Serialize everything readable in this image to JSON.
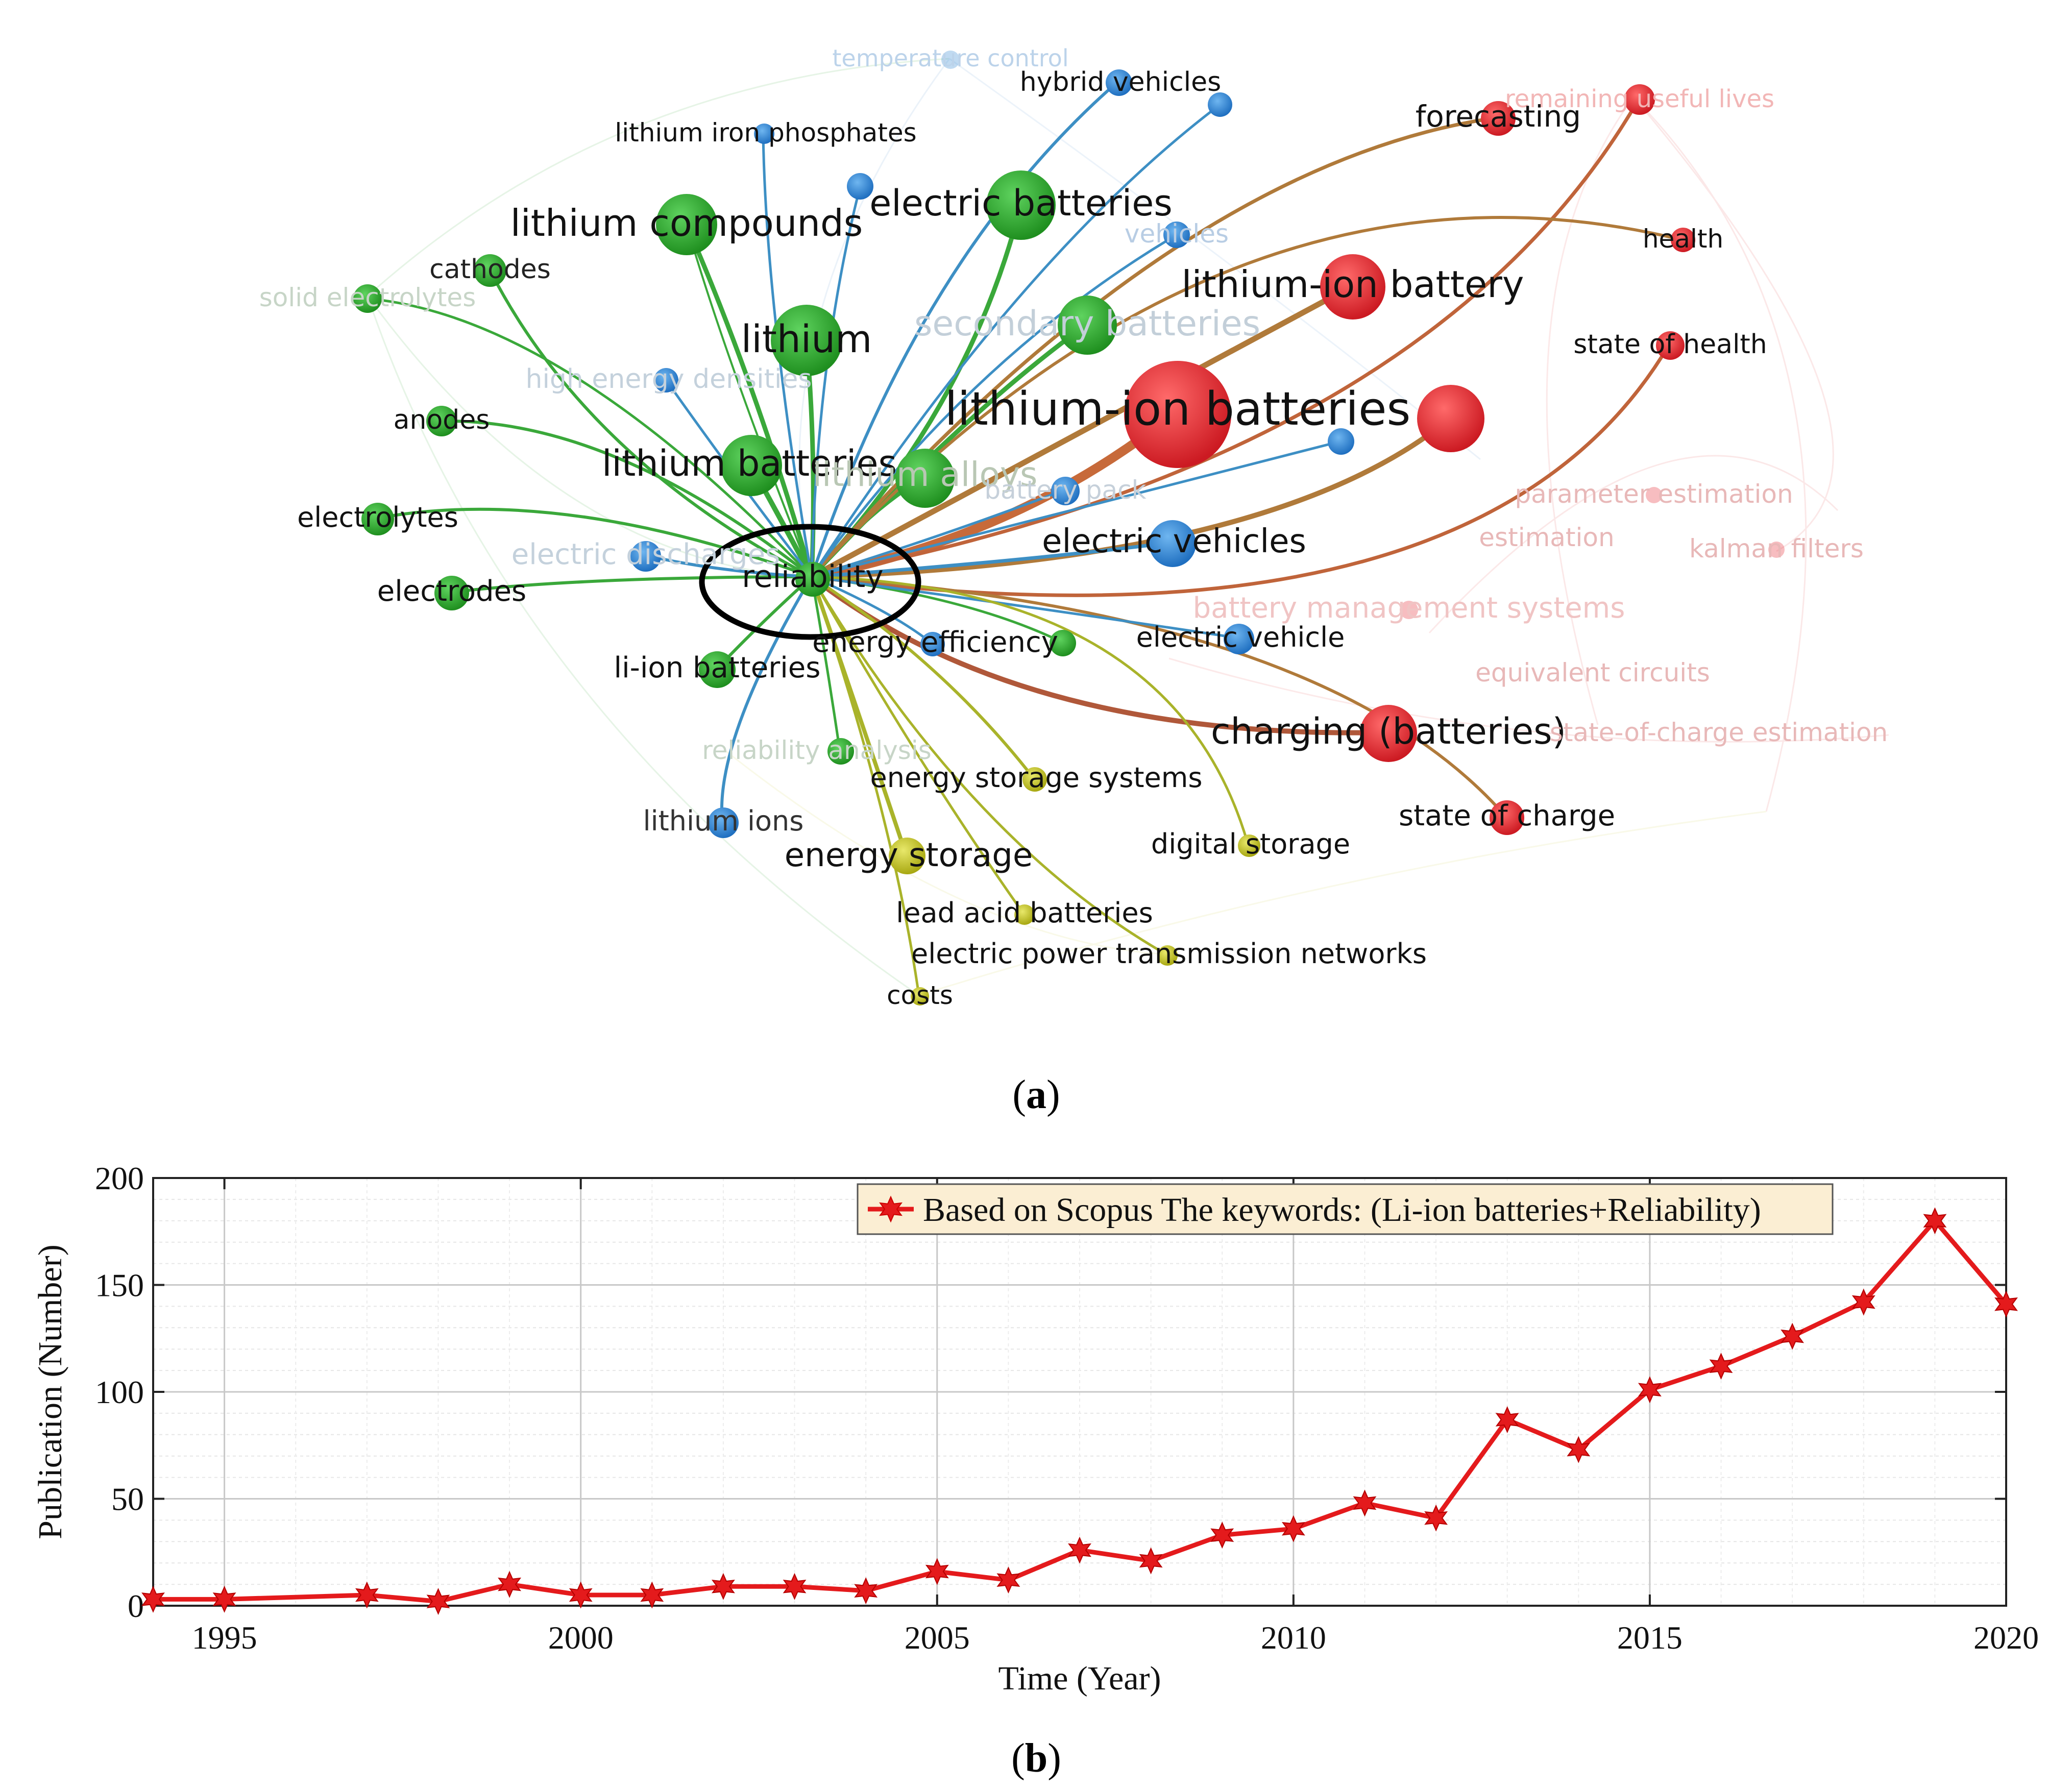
{
  "panels": {
    "a_label": "a",
    "b_label": "b"
  },
  "network": {
    "type": "keyword-cooccurrence-network",
    "highlighted_node": "reliability",
    "cluster_colors": {
      "green": "#2ca02c",
      "red": "#e3262d",
      "blue": "#2f86d1",
      "yellow": "#c8c81c"
    },
    "nodes": [
      {
        "id": "temperature control",
        "cluster": "blue",
        "faded": true
      },
      {
        "id": "hybrid vehicles",
        "cluster": "blue",
        "faded": false
      },
      {
        "id": "remaining useful lives",
        "cluster": "red",
        "faded": true
      },
      {
        "id": "forecasting",
        "cluster": "red",
        "faded": false
      },
      {
        "id": "lithium iron phosphates",
        "cluster": "blue",
        "faded": false
      },
      {
        "id": "lithium compounds",
        "cluster": "green",
        "faded": false
      },
      {
        "id": "electric batteries",
        "cluster": "green",
        "faded": false
      },
      {
        "id": "vehicles",
        "cluster": "blue",
        "faded": true
      },
      {
        "id": "health",
        "cluster": "red",
        "faded": false
      },
      {
        "id": "cathodes",
        "cluster": "green",
        "faded": false
      },
      {
        "id": "solid electrolytes",
        "cluster": "green",
        "faded": true
      },
      {
        "id": "lithium-ion battery",
        "cluster": "red",
        "faded": false
      },
      {
        "id": "lithium",
        "cluster": "green",
        "faded": false
      },
      {
        "id": "secondary batteries",
        "cluster": "green",
        "faded": true
      },
      {
        "id": "state of health",
        "cluster": "red",
        "faded": false
      },
      {
        "id": "high energy densities",
        "cluster": "blue",
        "faded": true
      },
      {
        "id": "anodes",
        "cluster": "green",
        "faded": false
      },
      {
        "id": "lithium-ion batteries",
        "cluster": "red",
        "faded": false
      },
      {
        "id": "lithium batteries",
        "cluster": "green",
        "faded": false
      },
      {
        "id": "lithium alloys",
        "cluster": "green",
        "faded": true
      },
      {
        "id": "battery pack",
        "cluster": "blue",
        "faded": true
      },
      {
        "id": "parameter estimation",
        "cluster": "red",
        "faded": true
      },
      {
        "id": "electrolytes",
        "cluster": "green",
        "faded": false
      },
      {
        "id": "estimation",
        "cluster": "red",
        "faded": true
      },
      {
        "id": "kalman filters",
        "cluster": "red",
        "faded": true
      },
      {
        "id": "electric discharges",
        "cluster": "blue",
        "faded": true
      },
      {
        "id": "electric vehicles",
        "cluster": "blue",
        "faded": false
      },
      {
        "id": "reliability",
        "cluster": "green",
        "faded": false
      },
      {
        "id": "electrodes",
        "cluster": "green",
        "faded": false
      },
      {
        "id": "battery management systems",
        "cluster": "red",
        "faded": true
      },
      {
        "id": "energy efficiency",
        "cluster": "blue",
        "faded": false
      },
      {
        "id": "electric vehicle",
        "cluster": "blue",
        "faded": false
      },
      {
        "id": "li-ion batteries",
        "cluster": "green",
        "faded": false
      },
      {
        "id": "equivalent circuits",
        "cluster": "red",
        "faded": true
      },
      {
        "id": "charging (batteries)",
        "cluster": "red",
        "faded": false
      },
      {
        "id": "state-of-charge estimation",
        "cluster": "red",
        "faded": true
      },
      {
        "id": "reliability analysis",
        "cluster": "green",
        "faded": true
      },
      {
        "id": "energy storage systems",
        "cluster": "yellow",
        "faded": false
      },
      {
        "id": "lithium ions",
        "cluster": "blue",
        "faded": false
      },
      {
        "id": "state of charge",
        "cluster": "red",
        "faded": false
      },
      {
        "id": "energy storage",
        "cluster": "yellow",
        "faded": false
      },
      {
        "id": "digital storage",
        "cluster": "yellow",
        "faded": false
      },
      {
        "id": "lead acid batteries",
        "cluster": "yellow",
        "faded": false
      },
      {
        "id": "electric power transmission networks",
        "cluster": "yellow",
        "faded": false
      },
      {
        "id": "costs",
        "cluster": "yellow",
        "faded": false
      }
    ],
    "labels": {
      "temperature_control": "temperature control",
      "hybrid_vehicles": "hybrid vehicles",
      "remaining_useful_lives": "remaining useful lives",
      "forecasting": "forecasting",
      "lithium_iron_phosphates": "lithium iron phosphates",
      "lithium_compounds": "lithium compounds",
      "electric_batteries": "electric batteries",
      "vehicles": "vehicles",
      "health": "health",
      "cathodes": "cathodes",
      "solid_electrolytes": "solid electrolytes",
      "lithium_ion_battery": "lithium-ion battery",
      "lithium": "lithium",
      "secondary_batteries": "secondary batteries",
      "state_of_health": "state of health",
      "high_energy_densities": "high energy densities",
      "anodes": "anodes",
      "lithium_ion_batteries": "lithium-ion batteries",
      "lithium_batteries": "lithium batteries",
      "lithium_alloys": "lithium alloys",
      "battery_pack": "battery pack",
      "parameter_estimation": "parameter estimation",
      "electrolytes": "electrolytes",
      "estimation": "estimation",
      "kalman_filters": "kalman filters",
      "electric_discharges": "electric discharges",
      "electric_vehicles": "electric vehicles",
      "reliability": "reliability",
      "electrodes": "electrodes",
      "battery_management_systems": "battery management systems",
      "energy_efficiency": "energy efficiency",
      "electric_vehicle": "electric vehicle",
      "li_ion_batteries": "li-ion batteries",
      "equivalent_circuits": "equivalent circuits",
      "charging_batteries": "charging (batteries)",
      "state_of_charge_estimation": "state-of-charge estimation",
      "reliability_analysis": "reliability analysis",
      "energy_storage_systems": "energy storage systems",
      "lithium_ions": "lithium ions",
      "state_of_charge": "state of charge",
      "energy_storage": "energy storage",
      "digital_storage": "digital storage",
      "lead_acid_batteries": "lead acid batteries",
      "electric_power_transmission_networks": "electric power transmission networks",
      "costs": "costs"
    }
  },
  "chart_data": {
    "type": "line",
    "title": "",
    "xlabel": "Time (Year)",
    "ylabel": "Publication (Number)",
    "xlim": [
      1994,
      2020
    ],
    "ylim": [
      0,
      200
    ],
    "xticks": [
      1995,
      2000,
      2005,
      2010,
      2015,
      2020
    ],
    "yticks": [
      0,
      50,
      100,
      150,
      200
    ],
    "grid": true,
    "minor_grid": true,
    "legend_position": "top-right",
    "series": [
      {
        "name": "Based on Scopus The keywords: (Li-ion batteries+Reliability)",
        "color": "#e41a1c",
        "marker": "hexagram",
        "x": [
          1994,
          1995,
          1997,
          1998,
          1999,
          2000,
          2001,
          2002,
          2003,
          2004,
          2005,
          2006,
          2007,
          2008,
          2009,
          2010,
          2011,
          2012,
          2013,
          2014,
          2015,
          2016,
          2017,
          2018,
          2019,
          2020
        ],
        "y": [
          3,
          3,
          5,
          2,
          10,
          5,
          5,
          9,
          9,
          7,
          16,
          12,
          26,
          21,
          33,
          36,
          48,
          41,
          87,
          73,
          101,
          112,
          126,
          142,
          180,
          141
        ]
      }
    ]
  }
}
